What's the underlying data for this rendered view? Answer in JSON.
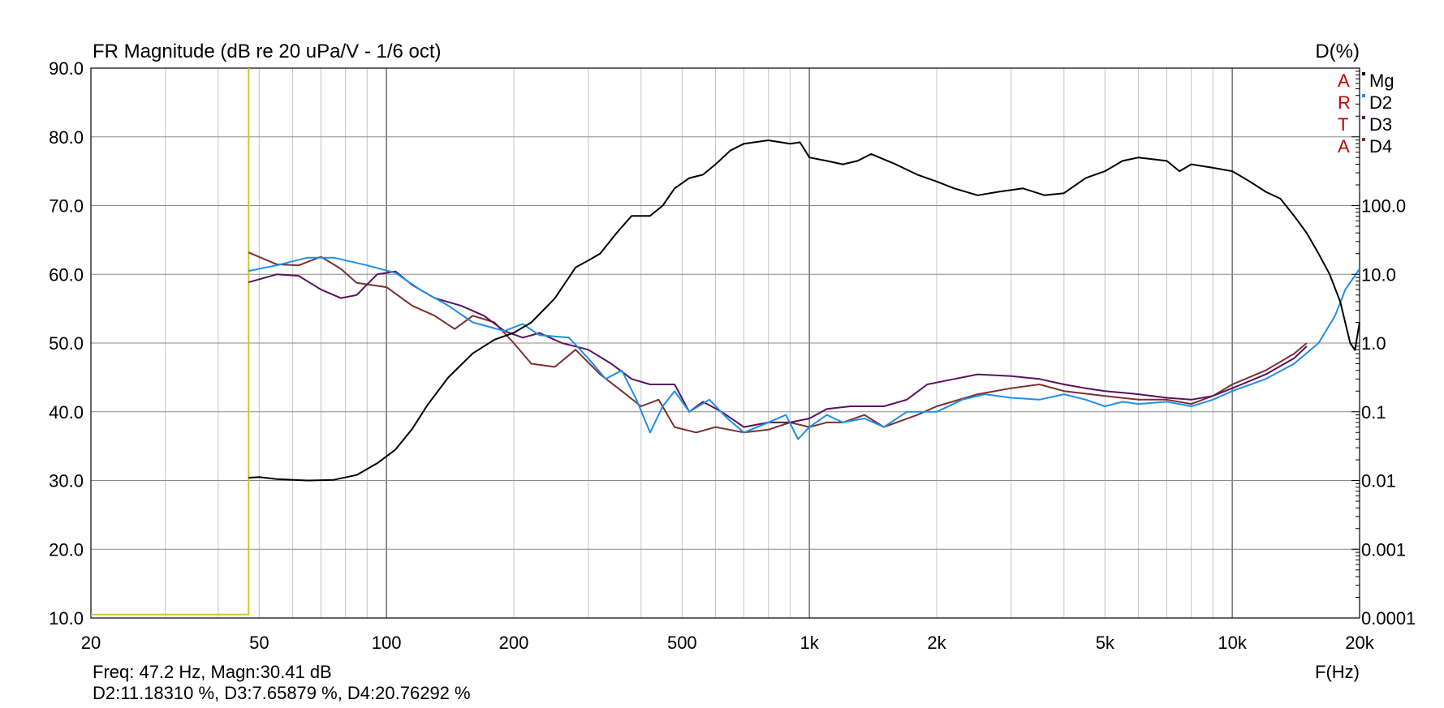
{
  "chart_data": {
    "type": "line",
    "title": "FR Magnitude (dB re 20 uPa/V - 1/6 oct)",
    "right_axis_title": "D(%)",
    "xlabel": "F(Hz)",
    "x_scale": "log",
    "xlim": [
      20,
      20000
    ],
    "ylim": [
      10,
      90
    ],
    "y2_scale": "log",
    "y2lim": [
      0.0001,
      10000
    ],
    "x_tick_labels": [
      {
        "value": 20,
        "label": "20"
      },
      {
        "value": 50,
        "label": "50"
      },
      {
        "value": 100,
        "label": "100"
      },
      {
        "value": 200,
        "label": "200"
      },
      {
        "value": 500,
        "label": "500"
      },
      {
        "value": 1000,
        "label": "1k"
      },
      {
        "value": 2000,
        "label": "2k"
      },
      {
        "value": 5000,
        "label": "5k"
      },
      {
        "value": 10000,
        "label": "10k"
      },
      {
        "value": 20000,
        "label": "20k"
      }
    ],
    "y_tick_labels": [
      {
        "value": 10,
        "label": "10.0"
      },
      {
        "value": 20,
        "label": "20.0"
      },
      {
        "value": 30,
        "label": "30.0"
      },
      {
        "value": 40,
        "label": "40.0"
      },
      {
        "value": 50,
        "label": "50.0"
      },
      {
        "value": 60,
        "label": "60.0"
      },
      {
        "value": 70,
        "label": "70.0"
      },
      {
        "value": 80,
        "label": "80.0"
      },
      {
        "value": 90,
        "label": "90.0"
      }
    ],
    "y2_tick_labels": [
      {
        "value": 0.0001,
        "label": "0.0001"
      },
      {
        "value": 0.001,
        "label": "0.001"
      },
      {
        "value": 0.01,
        "label": "0.01"
      },
      {
        "value": 0.1,
        "label": "0.1"
      },
      {
        "value": 1,
        "label": "1.0"
      },
      {
        "value": 10,
        "label": "10.0"
      },
      {
        "value": 100,
        "label": "100.0"
      }
    ],
    "grid": true,
    "legend": {
      "placement": "top-right",
      "arta_letters": [
        "A",
        "R",
        "T",
        "A"
      ],
      "entries": [
        {
          "name": "Mg",
          "color": "#000000"
        },
        {
          "name": "D2",
          "color": "#1f8fe6"
        },
        {
          "name": "D3",
          "color": "#5a1060"
        },
        {
          "name": "D4",
          "color": "#7a3030"
        }
      ]
    },
    "gate_marker": {
      "color": "#c8c832",
      "x": 47.2,
      "baseline_y": 10.5
    },
    "series": [
      {
        "name": "Mg",
        "axis": "left",
        "color": "#000000",
        "points": [
          [
            47.2,
            30.4
          ],
          [
            50,
            30.5
          ],
          [
            55,
            30.2
          ],
          [
            65,
            30.0
          ],
          [
            75,
            30.1
          ],
          [
            85,
            30.8
          ],
          [
            95,
            32.5
          ],
          [
            105,
            34.5
          ],
          [
            115,
            37.5
          ],
          [
            125,
            41.0
          ],
          [
            140,
            45.0
          ],
          [
            160,
            48.5
          ],
          [
            180,
            50.5
          ],
          [
            200,
            51.5
          ],
          [
            220,
            53.0
          ],
          [
            250,
            56.5
          ],
          [
            280,
            61.0
          ],
          [
            300,
            62.0
          ],
          [
            320,
            63.0
          ],
          [
            350,
            66.0
          ],
          [
            380,
            68.5
          ],
          [
            420,
            68.5
          ],
          [
            450,
            70.0
          ],
          [
            480,
            72.5
          ],
          [
            520,
            74.0
          ],
          [
            560,
            74.5
          ],
          [
            600,
            76.0
          ],
          [
            650,
            78.0
          ],
          [
            700,
            79.0
          ],
          [
            800,
            79.5
          ],
          [
            900,
            79.0
          ],
          [
            950,
            79.2
          ],
          [
            1000,
            77.0
          ],
          [
            1100,
            76.5
          ],
          [
            1200,
            76.0
          ],
          [
            1300,
            76.5
          ],
          [
            1400,
            77.5
          ],
          [
            1600,
            76.0
          ],
          [
            1800,
            74.5
          ],
          [
            2000,
            73.5
          ],
          [
            2200,
            72.5
          ],
          [
            2500,
            71.5
          ],
          [
            2800,
            72.0
          ],
          [
            3200,
            72.5
          ],
          [
            3600,
            71.5
          ],
          [
            4000,
            71.8
          ],
          [
            4500,
            74.0
          ],
          [
            5000,
            75.0
          ],
          [
            5500,
            76.5
          ],
          [
            6000,
            77.0
          ],
          [
            7000,
            76.5
          ],
          [
            7500,
            75.0
          ],
          [
            8000,
            76.0
          ],
          [
            9000,
            75.5
          ],
          [
            10000,
            75.0
          ],
          [
            11000,
            73.5
          ],
          [
            12000,
            72.0
          ],
          [
            13000,
            71.0
          ],
          [
            14000,
            68.5
          ],
          [
            15000,
            66.0
          ],
          [
            16000,
            63.0
          ],
          [
            17000,
            60.0
          ],
          [
            18000,
            56.0
          ],
          [
            19000,
            50.0
          ],
          [
            19500,
            49.0
          ],
          [
            20000,
            53.0
          ]
        ]
      },
      {
        "name": "D2",
        "axis": "right",
        "color": "#1f8fe6",
        "points": [
          [
            47.2,
            11.2
          ],
          [
            55,
            13.5
          ],
          [
            65,
            17.5
          ],
          [
            75,
            17.5
          ],
          [
            90,
            13.5
          ],
          [
            105,
            10.5
          ],
          [
            120,
            6.0
          ],
          [
            140,
            3.5
          ],
          [
            160,
            2.0
          ],
          [
            190,
            1.5
          ],
          [
            210,
            1.9
          ],
          [
            230,
            1.3
          ],
          [
            270,
            1.2
          ],
          [
            300,
            0.6
          ],
          [
            330,
            0.3
          ],
          [
            360,
            0.4
          ],
          [
            390,
            0.15
          ],
          [
            420,
            0.05
          ],
          [
            450,
            0.12
          ],
          [
            480,
            0.2
          ],
          [
            520,
            0.1
          ],
          [
            580,
            0.15
          ],
          [
            640,
            0.08
          ],
          [
            700,
            0.05
          ],
          [
            800,
            0.07
          ],
          [
            880,
            0.09
          ],
          [
            940,
            0.04
          ],
          [
            1000,
            0.06
          ],
          [
            1100,
            0.09
          ],
          [
            1200,
            0.07
          ],
          [
            1350,
            0.08
          ],
          [
            1500,
            0.06
          ],
          [
            1700,
            0.1
          ],
          [
            2000,
            0.1
          ],
          [
            2300,
            0.15
          ],
          [
            2600,
            0.18
          ],
          [
            3000,
            0.16
          ],
          [
            3500,
            0.15
          ],
          [
            4000,
            0.18
          ],
          [
            4500,
            0.15
          ],
          [
            5000,
            0.12
          ],
          [
            5500,
            0.14
          ],
          [
            6000,
            0.13
          ],
          [
            7000,
            0.14
          ],
          [
            8000,
            0.12
          ],
          [
            9000,
            0.15
          ],
          [
            10000,
            0.2
          ],
          [
            12000,
            0.3
          ],
          [
            14000,
            0.5
          ],
          [
            16000,
            1.0
          ],
          [
            17500,
            2.5
          ],
          [
            18500,
            6.0
          ],
          [
            20000,
            12.0
          ]
        ]
      },
      {
        "name": "D3",
        "axis": "right",
        "color": "#5a1060",
        "points": [
          [
            47.2,
            7.66
          ],
          [
            55,
            10.0
          ],
          [
            62,
            9.5
          ],
          [
            70,
            6.0
          ],
          [
            78,
            4.5
          ],
          [
            85,
            5.0
          ],
          [
            95,
            10.0
          ],
          [
            105,
            11.0
          ],
          [
            115,
            7.0
          ],
          [
            130,
            4.5
          ],
          [
            150,
            3.5
          ],
          [
            170,
            2.5
          ],
          [
            190,
            1.5
          ],
          [
            210,
            1.2
          ],
          [
            230,
            1.4
          ],
          [
            260,
            1.0
          ],
          [
            300,
            0.8
          ],
          [
            340,
            0.5
          ],
          [
            380,
            0.3
          ],
          [
            420,
            0.25
          ],
          [
            480,
            0.25
          ],
          [
            520,
            0.1
          ],
          [
            560,
            0.14
          ],
          [
            620,
            0.1
          ],
          [
            700,
            0.06
          ],
          [
            800,
            0.07
          ],
          [
            900,
            0.07
          ],
          [
            1000,
            0.08
          ],
          [
            1100,
            0.11
          ],
          [
            1250,
            0.12
          ],
          [
            1500,
            0.12
          ],
          [
            1700,
            0.15
          ],
          [
            1900,
            0.25
          ],
          [
            2200,
            0.3
          ],
          [
            2500,
            0.35
          ],
          [
            3000,
            0.33
          ],
          [
            3500,
            0.3
          ],
          [
            4000,
            0.25
          ],
          [
            4500,
            0.22
          ],
          [
            5000,
            0.2
          ],
          [
            6000,
            0.18
          ],
          [
            7000,
            0.16
          ],
          [
            8000,
            0.15
          ],
          [
            9000,
            0.17
          ],
          [
            10000,
            0.22
          ],
          [
            12000,
            0.35
          ],
          [
            14000,
            0.6
          ],
          [
            15000,
            0.9
          ]
        ]
      },
      {
        "name": "D4",
        "axis": "right",
        "color": "#7a3030",
        "points": [
          [
            47.2,
            20.8
          ],
          [
            55,
            14.0
          ],
          [
            62,
            13.5
          ],
          [
            70,
            18.0
          ],
          [
            78,
            12.0
          ],
          [
            85,
            7.5
          ],
          [
            100,
            6.5
          ],
          [
            115,
            3.5
          ],
          [
            130,
            2.5
          ],
          [
            145,
            1.6
          ],
          [
            160,
            2.5
          ],
          [
            180,
            2.0
          ],
          [
            200,
            1.0
          ],
          [
            220,
            0.5
          ],
          [
            250,
            0.45
          ],
          [
            280,
            0.8
          ],
          [
            320,
            0.35
          ],
          [
            360,
            0.2
          ],
          [
            400,
            0.12
          ],
          [
            440,
            0.15
          ],
          [
            480,
            0.06
          ],
          [
            540,
            0.05
          ],
          [
            600,
            0.06
          ],
          [
            700,
            0.05
          ],
          [
            800,
            0.055
          ],
          [
            900,
            0.07
          ],
          [
            1000,
            0.06
          ],
          [
            1100,
            0.07
          ],
          [
            1200,
            0.07
          ],
          [
            1350,
            0.09
          ],
          [
            1500,
            0.06
          ],
          [
            1800,
            0.09
          ],
          [
            2000,
            0.12
          ],
          [
            2500,
            0.18
          ],
          [
            3000,
            0.22
          ],
          [
            3500,
            0.25
          ],
          [
            4000,
            0.2
          ],
          [
            5000,
            0.17
          ],
          [
            6000,
            0.15
          ],
          [
            7000,
            0.15
          ],
          [
            8000,
            0.13
          ],
          [
            9000,
            0.17
          ],
          [
            10000,
            0.25
          ],
          [
            12000,
            0.4
          ],
          [
            14000,
            0.7
          ],
          [
            15000,
            1.0
          ]
        ]
      }
    ],
    "readout": {
      "line1": "Freq: 47.2 Hz, Magn:30.41 dB",
      "line2": "D2:11.18310 %, D3:7.65879 %, D4:20.76292 %"
    }
  }
}
